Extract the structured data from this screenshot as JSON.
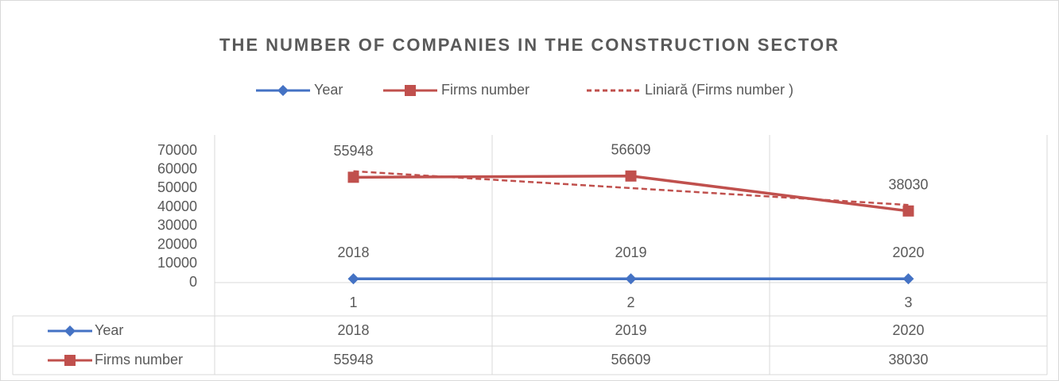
{
  "chart_data": {
    "type": "line",
    "title": "THE NUMBER OF COMPANIES IN THE CONSTRUCTION SECTOR",
    "categories": [
      "1",
      "2",
      "3"
    ],
    "series": [
      {
        "name": "Year",
        "color": "#4472c4",
        "marker": "diamond",
        "values": [
          2018,
          2019,
          2020
        ]
      },
      {
        "name": "Firms number",
        "color": "#c0504d",
        "marker": "square",
        "values": [
          55948,
          56609,
          38030
        ]
      },
      {
        "name": "Liniară (Firms number )",
        "color": "#c0504d",
        "trendline": true,
        "values": [
          59155,
          50196,
          41237
        ]
      }
    ],
    "ylim": [
      0,
      70000
    ],
    "yticks": [
      0,
      10000,
      20000,
      30000,
      40000,
      50000,
      60000,
      70000
    ],
    "legend": "top",
    "data_table": true
  }
}
